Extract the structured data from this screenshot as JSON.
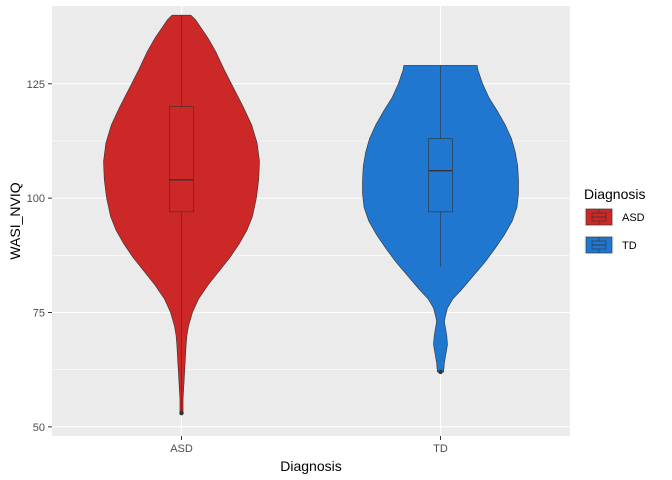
{
  "chart_data": {
    "type": "violin",
    "title": "",
    "xlabel": "Diagnosis",
    "ylabel": "WASI_NVIQ",
    "categories": [
      "ASD",
      "TD"
    ],
    "ylim": [
      48,
      142
    ],
    "yticks": [
      50,
      75,
      100,
      125
    ],
    "ytick_labels": [
      "50",
      "75",
      "100",
      "125"
    ],
    "grid": true,
    "legend": {
      "title": "Diagnosis",
      "position": "right",
      "entries": [
        "ASD",
        "TD"
      ]
    },
    "colors": {
      "ASD": "#cc2828",
      "TD": "#1f77d0",
      "panel": "#ebebeb",
      "grid": "#ffffff"
    },
    "series": [
      {
        "category": "ASD",
        "box": {
          "min": 53,
          "q1": 97,
          "median": 104,
          "q3": 120,
          "max": 140
        },
        "outliers": [
          53
        ],
        "density": [
          [
            53,
            0.02
          ],
          [
            56,
            0.02
          ],
          [
            59,
            0.03
          ],
          [
            62,
            0.04
          ],
          [
            65,
            0.05
          ],
          [
            68,
            0.06
          ],
          [
            70,
            0.07
          ],
          [
            72,
            0.09
          ],
          [
            75,
            0.14
          ],
          [
            78,
            0.22
          ],
          [
            81,
            0.34
          ],
          [
            84,
            0.48
          ],
          [
            87,
            0.62
          ],
          [
            90,
            0.74
          ],
          [
            93,
            0.84
          ],
          [
            96,
            0.91
          ],
          [
            100,
            0.96
          ],
          [
            104,
            0.99
          ],
          [
            108,
            1.0
          ],
          [
            112,
            0.97
          ],
          [
            116,
            0.9
          ],
          [
            120,
            0.79
          ],
          [
            124,
            0.67
          ],
          [
            128,
            0.55
          ],
          [
            132,
            0.44
          ],
          [
            135,
            0.34
          ],
          [
            137,
            0.26
          ],
          [
            139,
            0.18
          ],
          [
            140,
            0.12
          ]
        ]
      },
      {
        "category": "TD",
        "box": {
          "min": 85,
          "q1": 97,
          "median": 106,
          "q3": 113,
          "max": 129
        },
        "outliers": [
          62
        ],
        "density": [
          [
            62,
            0.04
          ],
          [
            64,
            0.05
          ],
          [
            66,
            0.07
          ],
          [
            68,
            0.09
          ],
          [
            70,
            0.08
          ],
          [
            72,
            0.06
          ],
          [
            73,
            0.05
          ],
          [
            74,
            0.06
          ],
          [
            76,
            0.09
          ],
          [
            78,
            0.16
          ],
          [
            80,
            0.27
          ],
          [
            83,
            0.42
          ],
          [
            86,
            0.57
          ],
          [
            89,
            0.7
          ],
          [
            92,
            0.82
          ],
          [
            95,
            0.92
          ],
          [
            98,
            0.98
          ],
          [
            101,
            1.0
          ],
          [
            104,
            1.0
          ],
          [
            107,
            0.99
          ],
          [
            110,
            0.96
          ],
          [
            113,
            0.91
          ],
          [
            116,
            0.83
          ],
          [
            119,
            0.73
          ],
          [
            122,
            0.62
          ],
          [
            125,
            0.54
          ],
          [
            127,
            0.5
          ],
          [
            128,
            0.48
          ],
          [
            129,
            0.47
          ]
        ]
      }
    ]
  }
}
